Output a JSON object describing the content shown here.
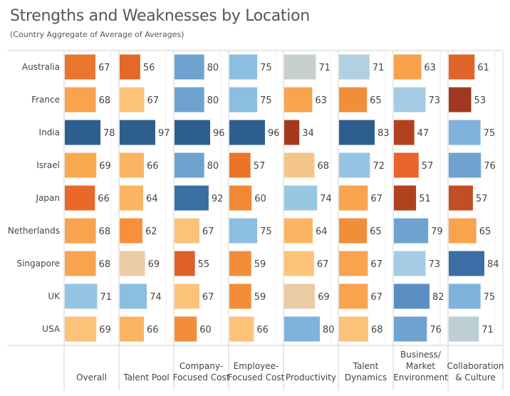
{
  "chart_data": {
    "type": "bar",
    "title": "Strengths and Weaknesses by Location",
    "subtitle": "(Country Aggregate of Average of Averages)",
    "rows": [
      "Australia",
      "France",
      "India",
      "Israel",
      "Japan",
      "Netherlands",
      "Singapore",
      "UK",
      "USA"
    ],
    "columns": [
      [
        "Overall"
      ],
      [
        "Talent Pool"
      ],
      [
        "Company-",
        "Focused Cost"
      ],
      [
        "Employee-",
        "Focused Cost"
      ],
      [
        "Productivity"
      ],
      [
        "Talent",
        "Dynamics"
      ],
      [
        "Business/",
        "Market",
        "Environment"
      ],
      [
        "Collaboration",
        "& Culture"
      ]
    ],
    "values": [
      [
        67,
        56,
        80,
        75,
        71,
        71,
        63,
        61
      ],
      [
        68,
        67,
        80,
        75,
        63,
        65,
        73,
        53
      ],
      [
        78,
        97,
        96,
        96,
        34,
        83,
        47,
        75
      ],
      [
        69,
        66,
        80,
        57,
        68,
        72,
        57,
        76
      ],
      [
        66,
        64,
        92,
        60,
        74,
        67,
        51,
        57
      ],
      [
        68,
        62,
        67,
        75,
        64,
        65,
        79,
        65
      ],
      [
        68,
        69,
        55,
        59,
        67,
        67,
        73,
        84
      ],
      [
        71,
        74,
        67,
        59,
        69,
        67,
        82,
        75
      ],
      [
        69,
        66,
        60,
        66,
        80,
        68,
        76,
        71
      ]
    ],
    "colors": [
      [
        "#E8762C",
        "#E4682A",
        "#6FA3CF",
        "#8BBEE0",
        "#C8CFCF",
        "#B2D0E0",
        "#F7A14B",
        "#E0652A"
      ],
      [
        "#F9A34E",
        "#FDC27A",
        "#6FA3CF",
        "#8BBEE0",
        "#F9A34E",
        "#F28D3A",
        "#A6CBE5",
        "#A0391F"
      ],
      [
        "#2E5E8E",
        "#2E5E8E",
        "#2E5E8E",
        "#2E5E8E",
        "#A5381F",
        "#2E5E8E",
        "#B2411F",
        "#7DB3DC"
      ],
      [
        "#F9A94F",
        "#FBB461",
        "#6FA3CF",
        "#EB7428",
        "#F5C68B",
        "#96C5E3",
        "#E8642A",
        "#6FA3CF"
      ],
      [
        "#E8692A",
        "#FBB461",
        "#396FA3",
        "#F28833",
        "#98C7E3",
        "#F9A34E",
        "#B2411F",
        "#C24E26"
      ],
      [
        "#F9A34E",
        "#F7903E",
        "#FDC27A",
        "#8BBEE0",
        "#FBB461",
        "#F28D3A",
        "#6FA3CF",
        "#F9A34E"
      ],
      [
        "#F9A34E",
        "#EACBA5",
        "#E0602A",
        "#F28D3A",
        "#FDC27A",
        "#F9A34E",
        "#A6CBE5",
        "#3A6EA5"
      ],
      [
        "#96C5E3",
        "#8BBEE0",
        "#FDC27A",
        "#F28D3A",
        "#EACBA5",
        "#F9A34E",
        "#5B8FC3",
        "#7DB3DC"
      ],
      [
        "#FDC27A",
        "#FBB461",
        "#F28D3A",
        "#FDC27A",
        "#7DB3DC",
        "#FDC27A",
        "#6FA3CF",
        "#BCCFD2"
      ]
    ],
    "scale": "each column normalized to its own maximum",
    "grid": true
  }
}
